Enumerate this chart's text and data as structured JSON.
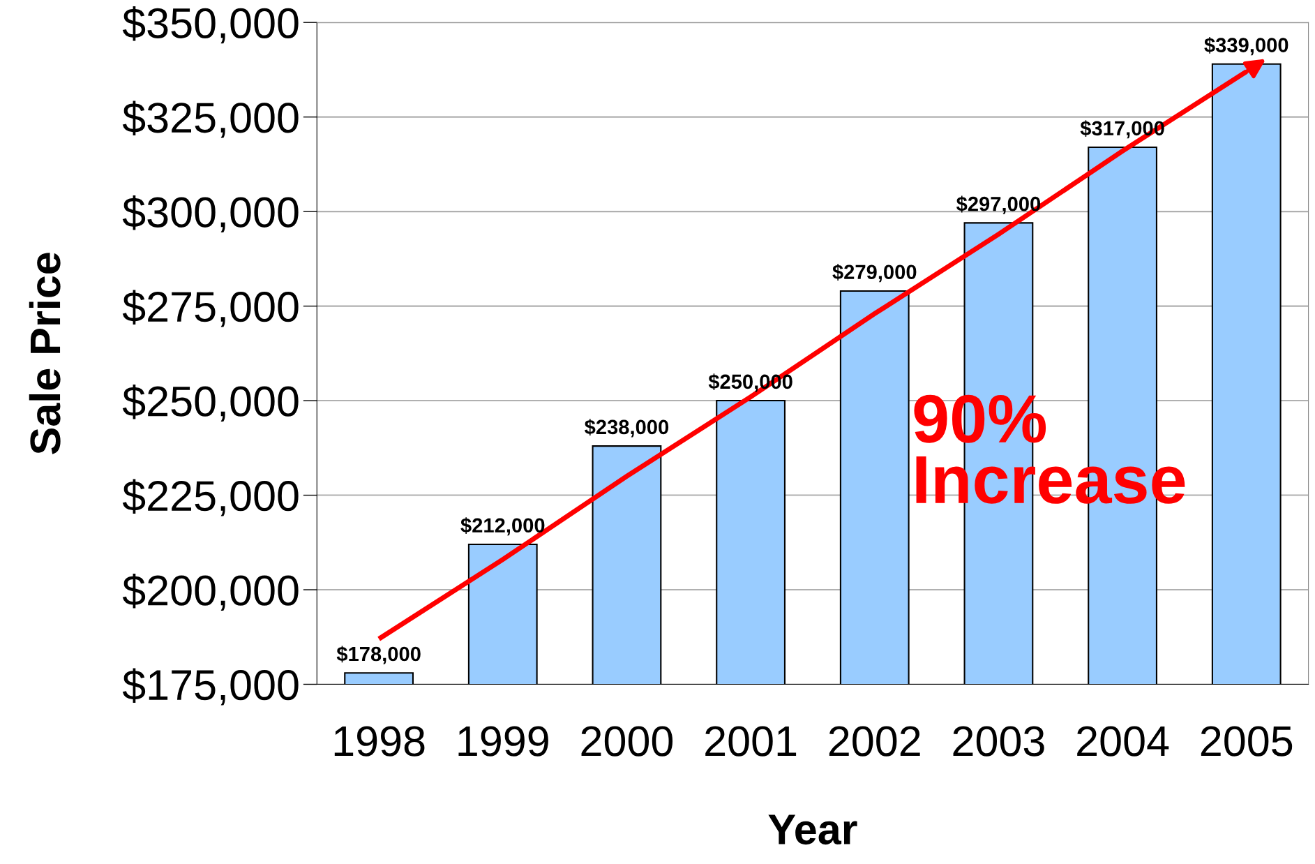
{
  "chart_data": {
    "type": "bar",
    "xlabel": "Year",
    "ylabel": "Sale Price",
    "categories": [
      "1998",
      "1999",
      "2000",
      "2001",
      "2002",
      "2003",
      "2004",
      "2005"
    ],
    "series": [
      {
        "color": "#99ccff",
        "values": [
          178000,
          212000,
          238000,
          250000,
          279000,
          297000,
          317000,
          339000
        ],
        "value_labels": [
          "$178,000",
          "$212,000",
          "$238,000",
          "$250,000",
          "$279,000",
          "$297,000",
          "$317,000",
          "$339,000"
        ]
      },
      {
        "type": "line",
        "color": "#ff0000",
        "values": [
          187000,
          208000,
          230000,
          251000,
          273000,
          294000,
          316000,
          337000
        ]
      }
    ],
    "ylim": [
      175000,
      350000
    ],
    "yticks": [
      {
        "value": 175000,
        "label": "$175,000"
      },
      {
        "value": 200000,
        "label": "$200,000"
      },
      {
        "value": 225000,
        "label": "$225,000"
      },
      {
        "value": 250000,
        "label": "$250,000"
      },
      {
        "value": 275000,
        "label": "$275,000"
      },
      {
        "value": 300000,
        "label": "$300,000"
      },
      {
        "value": 325000,
        "label": "$325,000"
      },
      {
        "value": 350000,
        "label": "$350,000"
      }
    ],
    "grid": "y",
    "annotations": [
      "90%\nIncrease"
    ]
  }
}
